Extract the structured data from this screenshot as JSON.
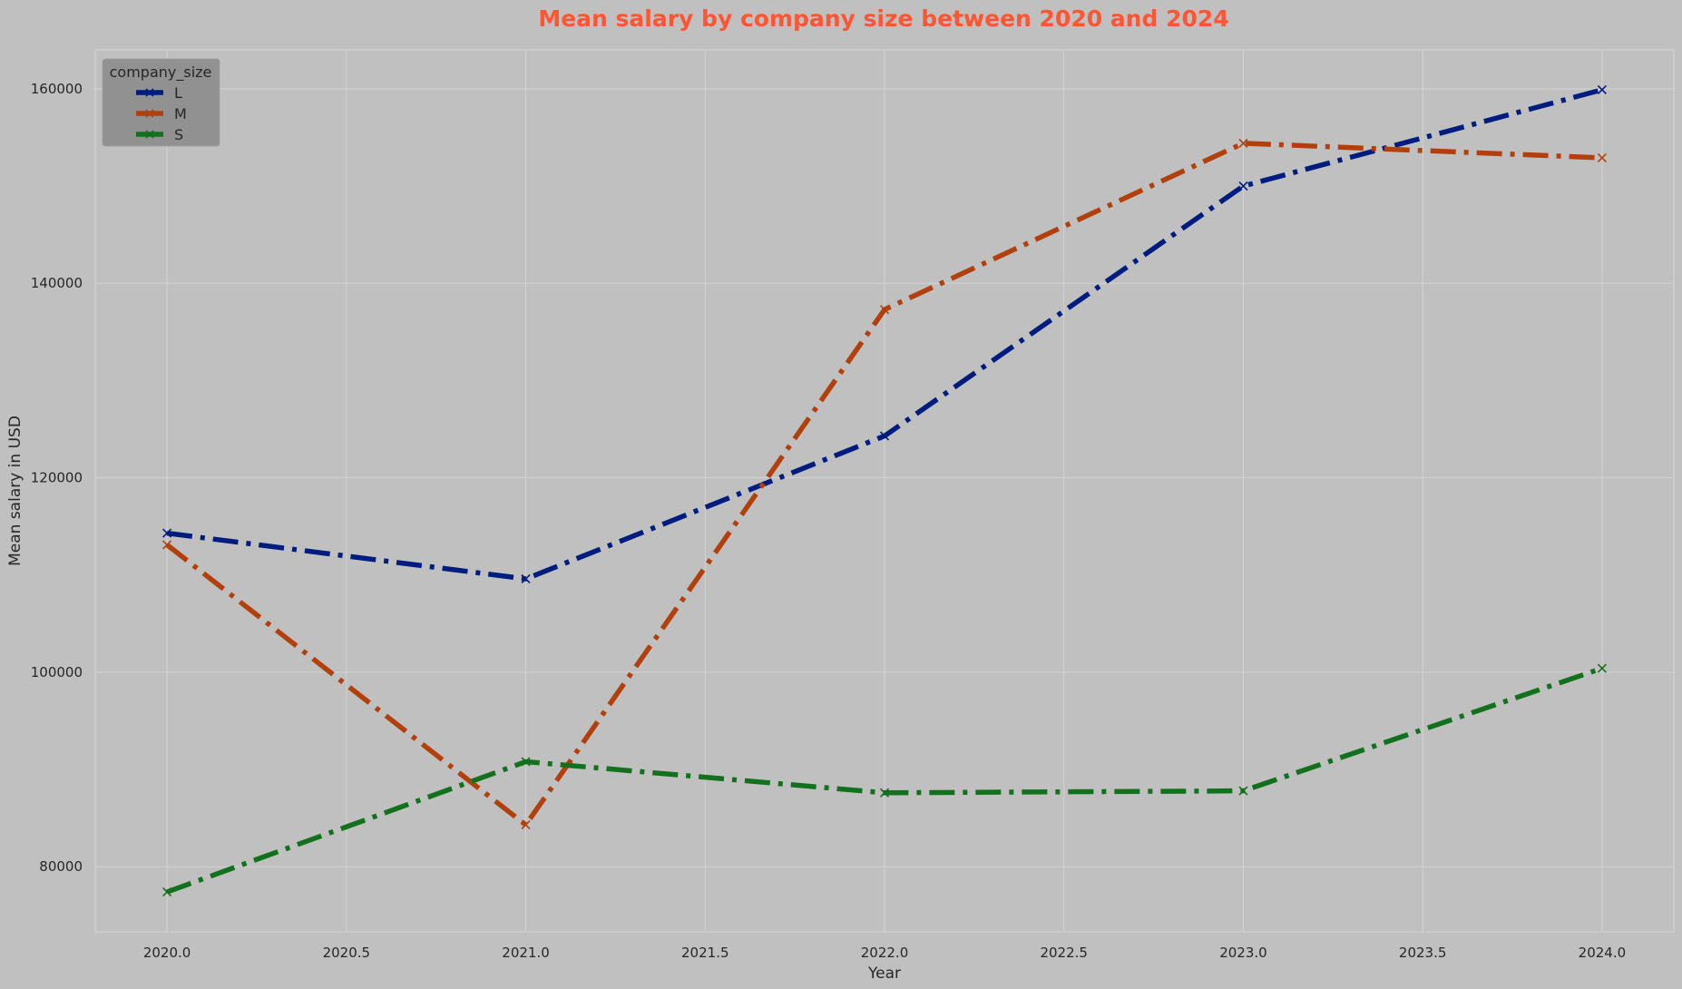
{
  "colors": {
    "background": "#c0c0c0",
    "grid": "#d3d3d3",
    "title": "#ff5533",
    "legend_box": "#8c8c8c"
  },
  "chart_data": {
    "type": "line",
    "title": "Mean salary by company size between 2020 and 2024",
    "xlabel": "Year",
    "ylabel": "Mean salary in USD",
    "xlim": [
      2019.8,
      2024.2
    ],
    "ylim": [
      73300,
      164000
    ],
    "x_ticks": [
      "2020.0",
      "2020.5",
      "2021.0",
      "2021.5",
      "2022.0",
      "2022.5",
      "2023.0",
      "2023.5",
      "2024.0"
    ],
    "y_ticks": [
      "80000",
      "100000",
      "120000",
      "140000",
      "160000"
    ],
    "grid": true,
    "line_style": "dash-dot",
    "marker": "x",
    "legend": {
      "title": "company_size",
      "placement": "top-left"
    },
    "x": [
      2020,
      2021,
      2022,
      2023,
      2024
    ],
    "series": [
      {
        "name": "L",
        "color": "#001c7f",
        "values": [
          114300,
          109600,
          124300,
          150000,
          159900
        ]
      },
      {
        "name": "M",
        "color": "#b1400d",
        "values": [
          113100,
          84300,
          137300,
          154400,
          152900
        ]
      },
      {
        "name": "S",
        "color": "#12711c",
        "values": [
          77400,
          90800,
          87600,
          87800,
          100400
        ]
      }
    ]
  }
}
